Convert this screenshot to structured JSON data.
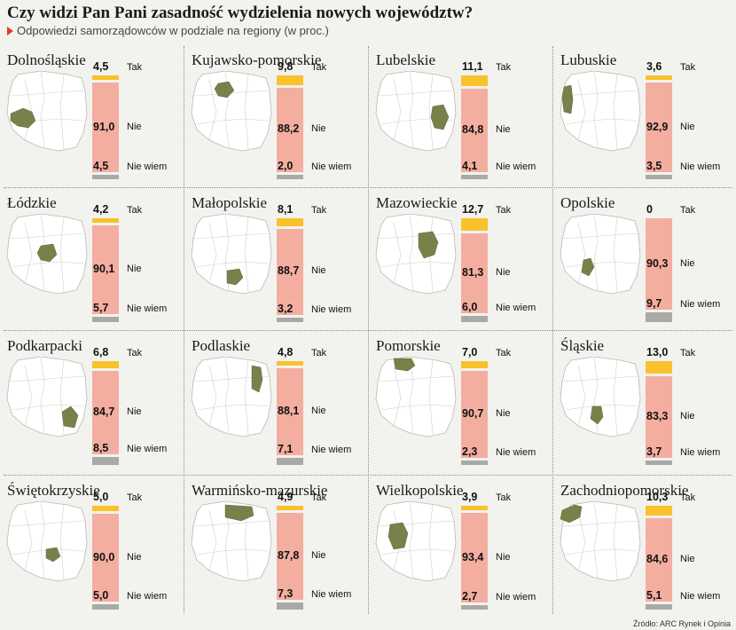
{
  "title": "Czy widzi Pan Pani zasadność wydzielenia nowych województw?",
  "subtitle": "Odpowiedzi samorządowców w podziale na regiony (w proc.)",
  "source": "Źródło: ARC Rynek i Opinia",
  "colors": {
    "tak": "#f9c12c",
    "nie": "#f4aea0",
    "nie_wiem": "#a9a9a6",
    "highlight": "#76824a"
  },
  "chart_data": {
    "type": "bar",
    "stacked": true,
    "orientation": "vertical",
    "answers": [
      "Tak",
      "Nie",
      "Nie wiem"
    ],
    "panels": [
      {
        "region": "Dolnośląskie",
        "tak": "4,5",
        "nie": "91,0",
        "nie_wiem": "4,5"
      },
      {
        "region": "Kujawsko-pomorskie",
        "tak": "9,8",
        "nie": "88,2",
        "nie_wiem": "2,0"
      },
      {
        "region": "Lubelskie",
        "tak": "11,1",
        "nie": "84,8",
        "nie_wiem": "4,1"
      },
      {
        "region": "Lubuskie",
        "tak": "3,6",
        "nie": "92,9",
        "nie_wiem": "3,5"
      },
      {
        "region": "Łódzkie",
        "tak": "4,2",
        "nie": "90,1",
        "nie_wiem": "5,7"
      },
      {
        "region": "Małopolskie",
        "tak": "8,1",
        "nie": "88,7",
        "nie_wiem": "3,2"
      },
      {
        "region": "Mazowieckie",
        "tak": "12,7",
        "nie": "81,3",
        "nie_wiem": "6,0"
      },
      {
        "region": "Opolskie",
        "tak": "0",
        "nie": "90,3",
        "nie_wiem": "9,7"
      },
      {
        "region": "Podkarpacki",
        "tak": "6,8",
        "nie": "84,7",
        "nie_wiem": "8,5"
      },
      {
        "region": "Podlaskie",
        "tak": "4,8",
        "nie": "88,1",
        "nie_wiem": "7,1"
      },
      {
        "region": "Pomorskie",
        "tak": "7,0",
        "nie": "90,7",
        "nie_wiem": "2,3"
      },
      {
        "region": "Śląskie",
        "tak": "13,0",
        "nie": "83,3",
        "nie_wiem": "3,7"
      },
      {
        "region": "Świętokrzyskie",
        "tak": "5,0",
        "nie": "90,0",
        "nie_wiem": "5,0"
      },
      {
        "region": "Warmińsko-mazurskie",
        "tak": "4,9",
        "nie": "87,8",
        "nie_wiem": "7,3"
      },
      {
        "region": "Wielkopolskie",
        "tak": "3,9",
        "nie": "93,4",
        "nie_wiem": "2,7"
      },
      {
        "region": "Zachodniopomorskie",
        "tak": "10,3",
        "nie": "84,6",
        "nie_wiem": "5,1"
      }
    ]
  }
}
